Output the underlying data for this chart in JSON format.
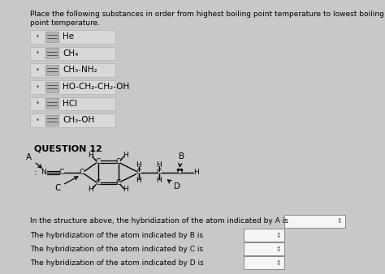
{
  "bg_color": "#c8c8c8",
  "panel_color": "#e8e8e8",
  "white_panel": "#f0f0f0",
  "title_text": "Place the following substances in order from highest boiling point temperature to lowest boiling point temperature.",
  "substances": [
    "He",
    "CH₄",
    "CH₃-NH₂",
    "HO-CH₂-CH₂-OH",
    "HCl",
    "CH₃-OH"
  ],
  "question_label": "QUESTION 12",
  "hybridization_lines": [
    "In the structure above, the hybridization of the atom indicated by A is",
    "The hybridization of the atom indicated by B is",
    "The hybridization of the atom indicated by C is",
    "The hybridization of the atom indicated by D is"
  ],
  "font_size_title": 6.5,
  "font_size_items": 7.5,
  "font_size_q": 8,
  "font_size_hyb": 6.5,
  "mol_fs": 6.5
}
